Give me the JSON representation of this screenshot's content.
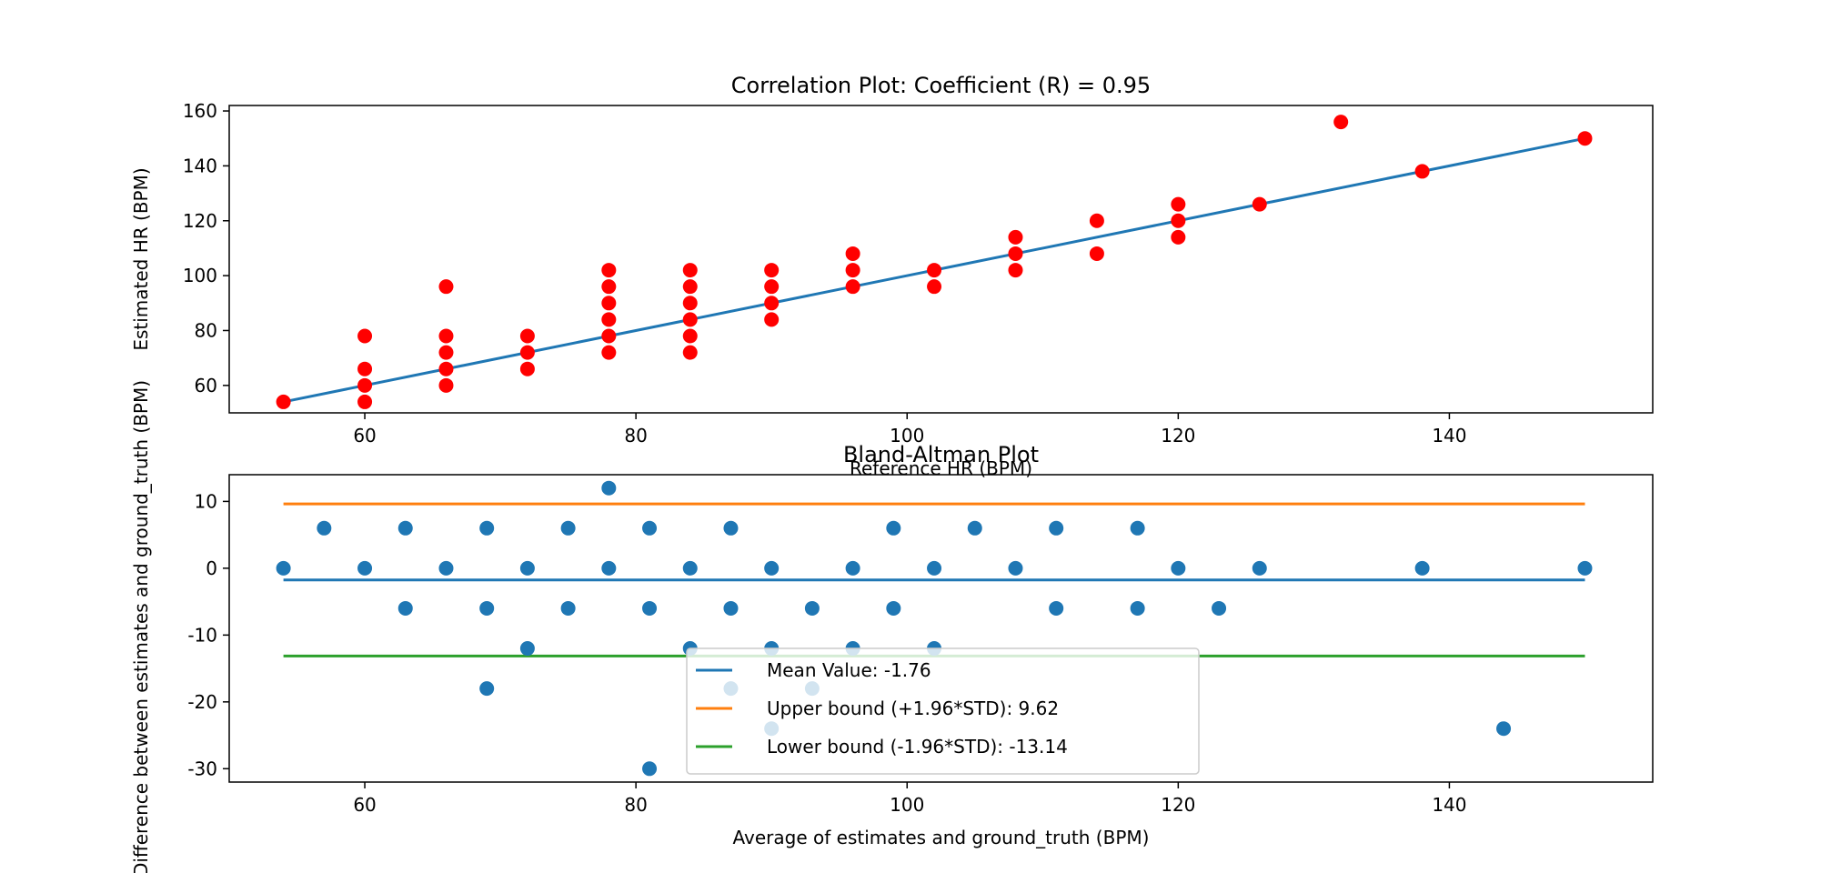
{
  "chart_data": [
    {
      "type": "scatter",
      "title": "Correlation Plot: Coefficient (R) = 0.95",
      "xlabel": "Reference HR (BPM)",
      "ylabel": "Estimated HR (BPM)",
      "xlim": [
        50,
        155
      ],
      "ylim": [
        50,
        162
      ],
      "xticks": [
        60,
        80,
        100,
        120,
        140
      ],
      "yticks": [
        60,
        80,
        100,
        120,
        140,
        160
      ],
      "grid": false,
      "series": [
        {
          "color": "#ff0000",
          "points": [
            [
              54,
              54
            ],
            [
              60,
              54
            ],
            [
              60,
              60
            ],
            [
              60,
              66
            ],
            [
              60,
              78
            ],
            [
              66,
              60
            ],
            [
              66,
              66
            ],
            [
              66,
              72
            ],
            [
              66,
              78
            ],
            [
              66,
              96
            ],
            [
              72,
              66
            ],
            [
              72,
              72
            ],
            [
              72,
              78
            ],
            [
              78,
              72
            ],
            [
              78,
              78
            ],
            [
              78,
              84
            ],
            [
              78,
              90
            ],
            [
              78,
              96
            ],
            [
              78,
              102
            ],
            [
              84,
              72
            ],
            [
              84,
              78
            ],
            [
              84,
              84
            ],
            [
              84,
              90
            ],
            [
              84,
              96
            ],
            [
              84,
              102
            ],
            [
              90,
              84
            ],
            [
              90,
              90
            ],
            [
              90,
              96
            ],
            [
              90,
              102
            ],
            [
              96,
              96
            ],
            [
              96,
              102
            ],
            [
              96,
              108
            ],
            [
              102,
              96
            ],
            [
              102,
              102
            ],
            [
              108,
              102
            ],
            [
              108,
              108
            ],
            [
              108,
              114
            ],
            [
              114,
              108
            ],
            [
              114,
              120
            ],
            [
              120,
              114
            ],
            [
              120,
              120
            ],
            [
              120,
              126
            ],
            [
              126,
              126
            ],
            [
              132,
              156
            ],
            [
              138,
              138
            ],
            [
              150,
              150
            ]
          ]
        },
        {
          "color": "#1f77b4",
          "line": [
            [
              54,
              54
            ],
            [
              150,
              150
            ]
          ]
        }
      ]
    },
    {
      "type": "scatter",
      "title": "Bland-Altman Plot",
      "xlabel": "Average of estimates and ground_truth (BPM)",
      "ylabel": "Difference between estimates and ground_truth (BPM)",
      "xlim": [
        50,
        155
      ],
      "ylim": [
        -32,
        14
      ],
      "xticks": [
        60,
        80,
        100,
        120,
        140
      ],
      "yticks": [
        -30,
        -20,
        -10,
        0,
        10
      ],
      "grid": false,
      "legend_position": "lower-center",
      "points_color": "#1f77b4",
      "points": [
        [
          54,
          0
        ],
        [
          57,
          6
        ],
        [
          60,
          0
        ],
        [
          63,
          6
        ],
        [
          63,
          -6
        ],
        [
          66,
          0
        ],
        [
          69,
          6
        ],
        [
          69,
          -6
        ],
        [
          69,
          -18
        ],
        [
          72,
          0
        ],
        [
          72,
          -12
        ],
        [
          75,
          6
        ],
        [
          75,
          -6
        ],
        [
          78,
          12
        ],
        [
          78,
          0
        ],
        [
          81,
          6
        ],
        [
          81,
          -6
        ],
        [
          81,
          -30
        ],
        [
          84,
          0
        ],
        [
          84,
          -12
        ],
        [
          87,
          6
        ],
        [
          87,
          -6
        ],
        [
          87,
          -18
        ],
        [
          90,
          0
        ],
        [
          90,
          -12
        ],
        [
          90,
          -24
        ],
        [
          93,
          -6
        ],
        [
          93,
          -18
        ],
        [
          96,
          0
        ],
        [
          96,
          -12
        ],
        [
          99,
          6
        ],
        [
          99,
          -6
        ],
        [
          102,
          0
        ],
        [
          102,
          -12
        ],
        [
          105,
          6
        ],
        [
          108,
          0
        ],
        [
          111,
          6
        ],
        [
          111,
          -6
        ],
        [
          117,
          6
        ],
        [
          117,
          -6
        ],
        [
          120,
          0
        ],
        [
          123,
          -6
        ],
        [
          126,
          0
        ],
        [
          138,
          0
        ],
        [
          144,
          -24
        ],
        [
          150,
          0
        ]
      ],
      "lines": [
        {
          "label": "Mean Value: -1.76",
          "y": -1.76,
          "color": "#1f77b4"
        },
        {
          "label": "Upper bound (+1.96*STD): 9.62",
          "y": 9.62,
          "color": "#ff7f0e"
        },
        {
          "label": "Lower bound (-1.96*STD): -13.14",
          "y": -13.14,
          "color": "#2ca02c"
        }
      ],
      "line_x_range": [
        54,
        150
      ]
    }
  ]
}
